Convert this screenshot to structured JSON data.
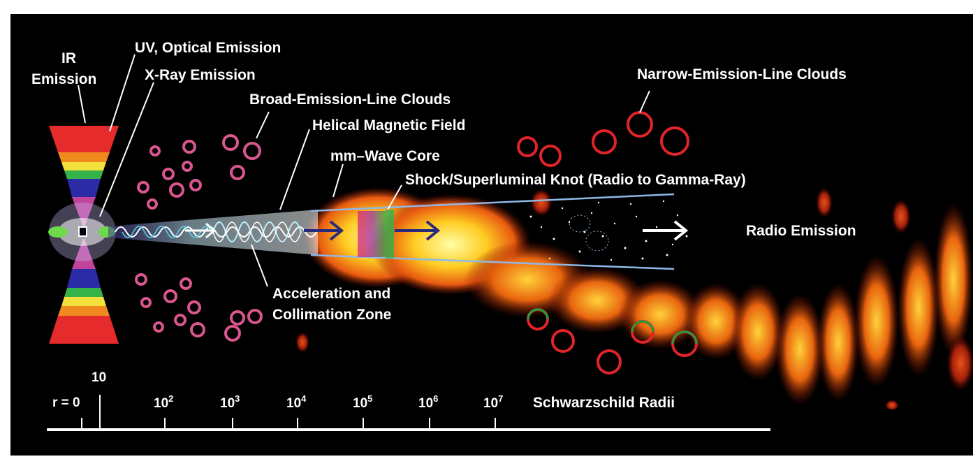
{
  "labels": {
    "ir_emission_line1": "IR",
    "ir_emission_line2": "Emission",
    "uv_optical": "UV, Optical Emission",
    "xray": "X-Ray Emission",
    "broad_line_clouds": "Broad-Emission-Line Clouds",
    "helical_field": "Helical Magnetic Field",
    "mm_core": "mm–Wave Core",
    "shock_knot": "Shock/Superluminal Knot (Radio to Gamma-Ray)",
    "narrow_line_clouds": "Narrow-Emission-Line Clouds",
    "radio_emission": "Radio Emission",
    "acceleration_line1": "Acceleration and",
    "acceleration_line2": "Collimation Zone"
  },
  "scale": {
    "r_zero": "r = 0",
    "ten": "10",
    "tick_base": "10",
    "exponents": [
      "2",
      "3",
      "4",
      "5",
      "6",
      "7"
    ],
    "unit": "Schwarzschild Radii"
  },
  "colors": {
    "background": "#000000",
    "text": "#ffffff",
    "broad_line_cloud": "#d9568f",
    "narrow_line_cloud": "#e0242a",
    "green_ring": "#1f9e3a",
    "jet_cyan": "#6fd6ee",
    "arrow_navy": "#2a2a7a"
  }
}
